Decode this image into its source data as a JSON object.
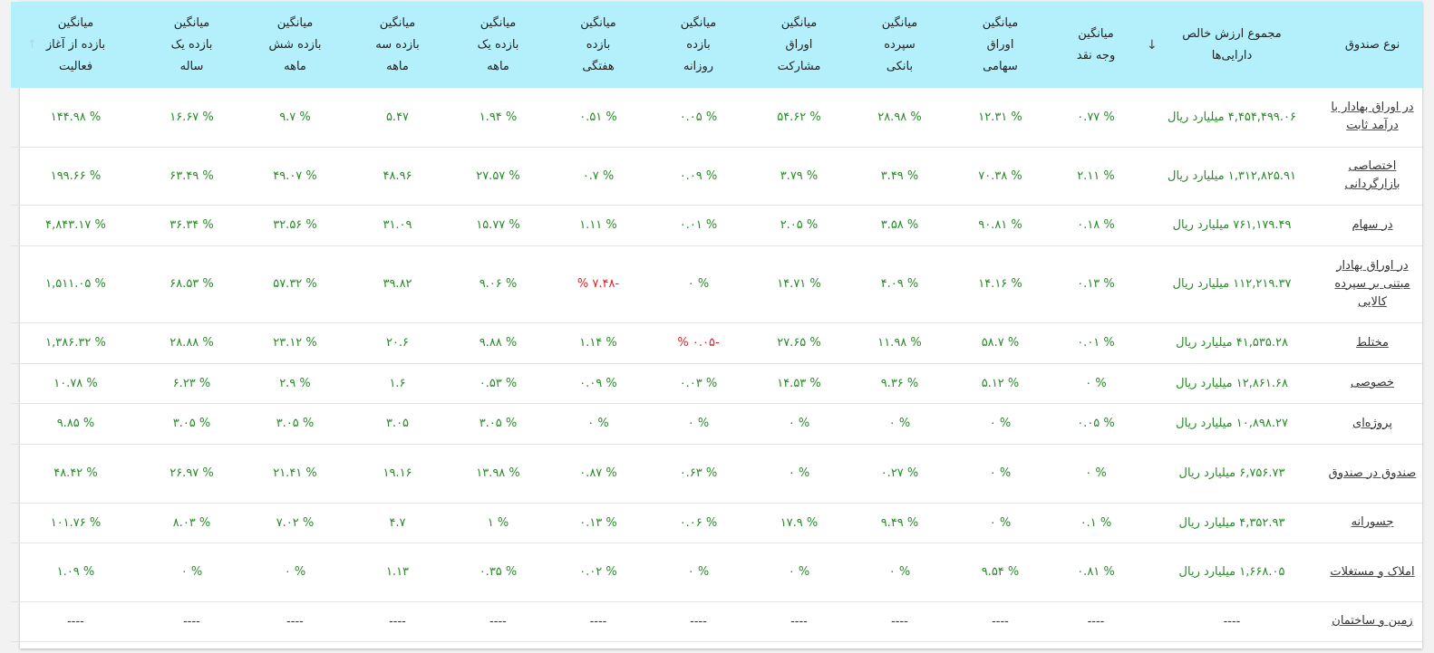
{
  "colors": {
    "header_bg": "#b3f0fb",
    "positive": "#2a8a2a",
    "negative": "#e52020"
  },
  "sort": {
    "net_asset": "arrow-down-icon",
    "since_start": "arrow-up-icon"
  },
  "headers": {
    "fund_type": "نوع صندوق",
    "net_asset": "مجموع ارزش خالص\nدارایی‌ها",
    "cash": "میانگین\nوجه نقد",
    "stocks": "میانگین\nاوراق\nسهامی",
    "deposit": "میانگین\nسپرده\nبانکی",
    "bonds": "میانگین\nاوراق\nمشارکت",
    "daily": "میانگین\nبازده\nروزانه",
    "weekly": "میانگین\nبازده\nهفتگی",
    "monthly": "میانگین\nبازده یک\nماهه",
    "three_month": "میانگین\nبازده سه\nماهه",
    "six_month": "میانگین\nبازده شش\nماهه",
    "yearly": "میانگین\nبازده یک\nساله",
    "since_start": "میانگین\nبازده از آغاز\nفعالیت"
  },
  "rows": [
    {
      "name": "در اوراق بهادار با درآمد ثابت",
      "net_asset": "۴,۴۵۴,۴۹۹.۰۶ میلیارد ریال",
      "cash": "% ۰.۷۷",
      "stocks": "% ۱۲.۳۱",
      "deposit": "% ۲۸.۹۸",
      "bonds": "% ۵۴.۶۲",
      "daily": "% ۰.۰۵",
      "weekly": "% ۰.۵۱",
      "monthly": "% ۱.۹۴",
      "three_month": "۵.۴۷",
      "six_month": "% ۹.۷",
      "yearly": "% ۱۶.۶۷",
      "since_start": "% ۱۴۴.۹۸"
    },
    {
      "name": "اختصاصی بازارگردانی",
      "net_asset": "۱,۳۱۲,۸۲۵.۹۱ میلیارد ریال",
      "cash": "% ۲.۱۱",
      "stocks": "% ۷۰.۳۸",
      "deposit": "% ۳.۴۹",
      "bonds": "% ۳.۷۹",
      "daily": "% ۰.۰۹",
      "weekly": "% ۰.۷",
      "monthly": "% ۲۷.۵۷",
      "three_month": "۴۸.۹۶",
      "six_month": "% ۴۹.۰۷",
      "yearly": "% ۶۳.۴۹",
      "since_start": "% ۱۹۹.۶۶"
    },
    {
      "name": "در سهام",
      "net_asset": "۷۶۱,۱۷۹.۴۹ میلیارد ریال",
      "cash": "% ۰.۱۸",
      "stocks": "% ۹۰.۸۱",
      "deposit": "% ۳.۵۸",
      "bonds": "% ۲.۰۵",
      "daily": "% ۰.۰۱",
      "weekly": "% ۱.۱۱",
      "monthly": "% ۱۵.۷۷",
      "three_month": "۳۱.۰۹",
      "six_month": "% ۳۲.۵۶",
      "yearly": "% ۳۶.۳۴",
      "since_start": "% ۴,۸۴۳.۱۷"
    },
    {
      "name": "در اوراق بهادار مبتنی بر سپرده کالایی",
      "net_asset": "۱۱۲,۲۱۹.۳۷ میلیارد ریال",
      "cash": "% ۰.۱۳",
      "stocks": "% ۱۴.۱۶",
      "deposit": "% ۴.۰۹",
      "bonds": "% ۱۴.۷۱",
      "daily": "% ۰",
      "weekly": "-۷.۴۸ %",
      "monthly": "% ۹.۰۶",
      "three_month": "۳۹.۸۲",
      "six_month": "% ۵۷.۳۲",
      "yearly": "% ۶۸.۵۳",
      "since_start": "% ۱,۵۱۱.۰۵"
    },
    {
      "name": "مختلط",
      "net_asset": "۴۱,۵۳۵.۲۸ میلیارد ریال",
      "cash": "% ۰.۰۱",
      "stocks": "% ۵۸.۷",
      "deposit": "% ۱۱.۹۸",
      "bonds": "% ۲۷.۶۵",
      "daily": "-۰.۰۵ %",
      "weekly": "% ۱.۱۴",
      "monthly": "% ۹.۸۸",
      "three_month": "۲۰.۶",
      "six_month": "% ۲۳.۱۲",
      "yearly": "% ۲۸.۸۸",
      "since_start": "% ۱,۳۸۶.۳۲"
    },
    {
      "name": "خصوصی",
      "net_asset": "۱۲,۸۶۱.۶۸ میلیارد ریال",
      "cash": "% ۰",
      "stocks": "% ۵.۱۲",
      "deposit": "% ۹.۳۶",
      "bonds": "% ۱۴.۵۳",
      "daily": "% ۰.۰۳",
      "weekly": "% ۰.۰۹",
      "monthly": "% ۰.۵۳",
      "three_month": "۱.۶",
      "six_month": "% ۲.۹",
      "yearly": "% ۶.۲۳",
      "since_start": "% ۱۰.۷۸"
    },
    {
      "name": "پروژه‌ای",
      "net_asset": "۱۰,۸۹۸.۲۷ میلیارد ریال",
      "cash": "% ۰.۰۵",
      "stocks": "% ۰",
      "deposit": "% ۰",
      "bonds": "% ۰",
      "daily": "% ۰",
      "weekly": "% ۰",
      "monthly": "% ۳.۰۵",
      "three_month": "۳.۰۵",
      "six_month": "% ۳.۰۵",
      "yearly": "% ۳.۰۵",
      "since_start": "% ۹.۸۵"
    },
    {
      "name": "صندوق در صندوق",
      "net_asset": "۶,۷۵۶.۷۳ میلیارد ریال",
      "cash": "% ۰",
      "stocks": "% ۰",
      "deposit": "% ۰.۲۷",
      "bonds": "% ۰",
      "daily": "% ۰.۶۳",
      "weekly": "% ۰.۸۷",
      "monthly": "% ۱۳.۹۸",
      "three_month": "۱۹.۱۶",
      "six_month": "% ۲۱.۴۱",
      "yearly": "% ۲۶.۹۷",
      "since_start": "% ۴۸.۴۲"
    },
    {
      "name": "جسورانه",
      "net_asset": "۴,۳۵۲.۹۳ میلیارد ریال",
      "cash": "% ۰.۱",
      "stocks": "% ۰",
      "deposit": "% ۹.۴۹",
      "bonds": "% ۱۷.۹",
      "daily": "% ۰.۰۶",
      "weekly": "% ۰.۱۳",
      "monthly": "% ۱",
      "three_month": "۴.۷",
      "six_month": "% ۷.۰۲",
      "yearly": "% ۸.۰۳",
      "since_start": "% ۱۰۱.۷۶"
    },
    {
      "name": "املاک و مستغلات",
      "net_asset": "۱,۶۶۸.۰۵ میلیارد ریال",
      "cash": "% ۰.۸۱",
      "stocks": "% ۹.۵۴",
      "deposit": "% ۰",
      "bonds": "% ۰",
      "daily": "% ۰",
      "weekly": "% ۰.۰۲",
      "monthly": "% ۰.۳۵",
      "three_month": "۱.۱۳",
      "six_month": "% ۰",
      "yearly": "% ۰",
      "since_start": "% ۱.۰۹"
    },
    {
      "name": "زمین و ساختمان",
      "net_asset": "----",
      "cash": "----",
      "stocks": "----",
      "deposit": "----",
      "bonds": "----",
      "daily": "----",
      "weekly": "----",
      "monthly": "----",
      "three_month": "----",
      "six_month": "----",
      "yearly": "----",
      "since_start": "----"
    }
  ]
}
